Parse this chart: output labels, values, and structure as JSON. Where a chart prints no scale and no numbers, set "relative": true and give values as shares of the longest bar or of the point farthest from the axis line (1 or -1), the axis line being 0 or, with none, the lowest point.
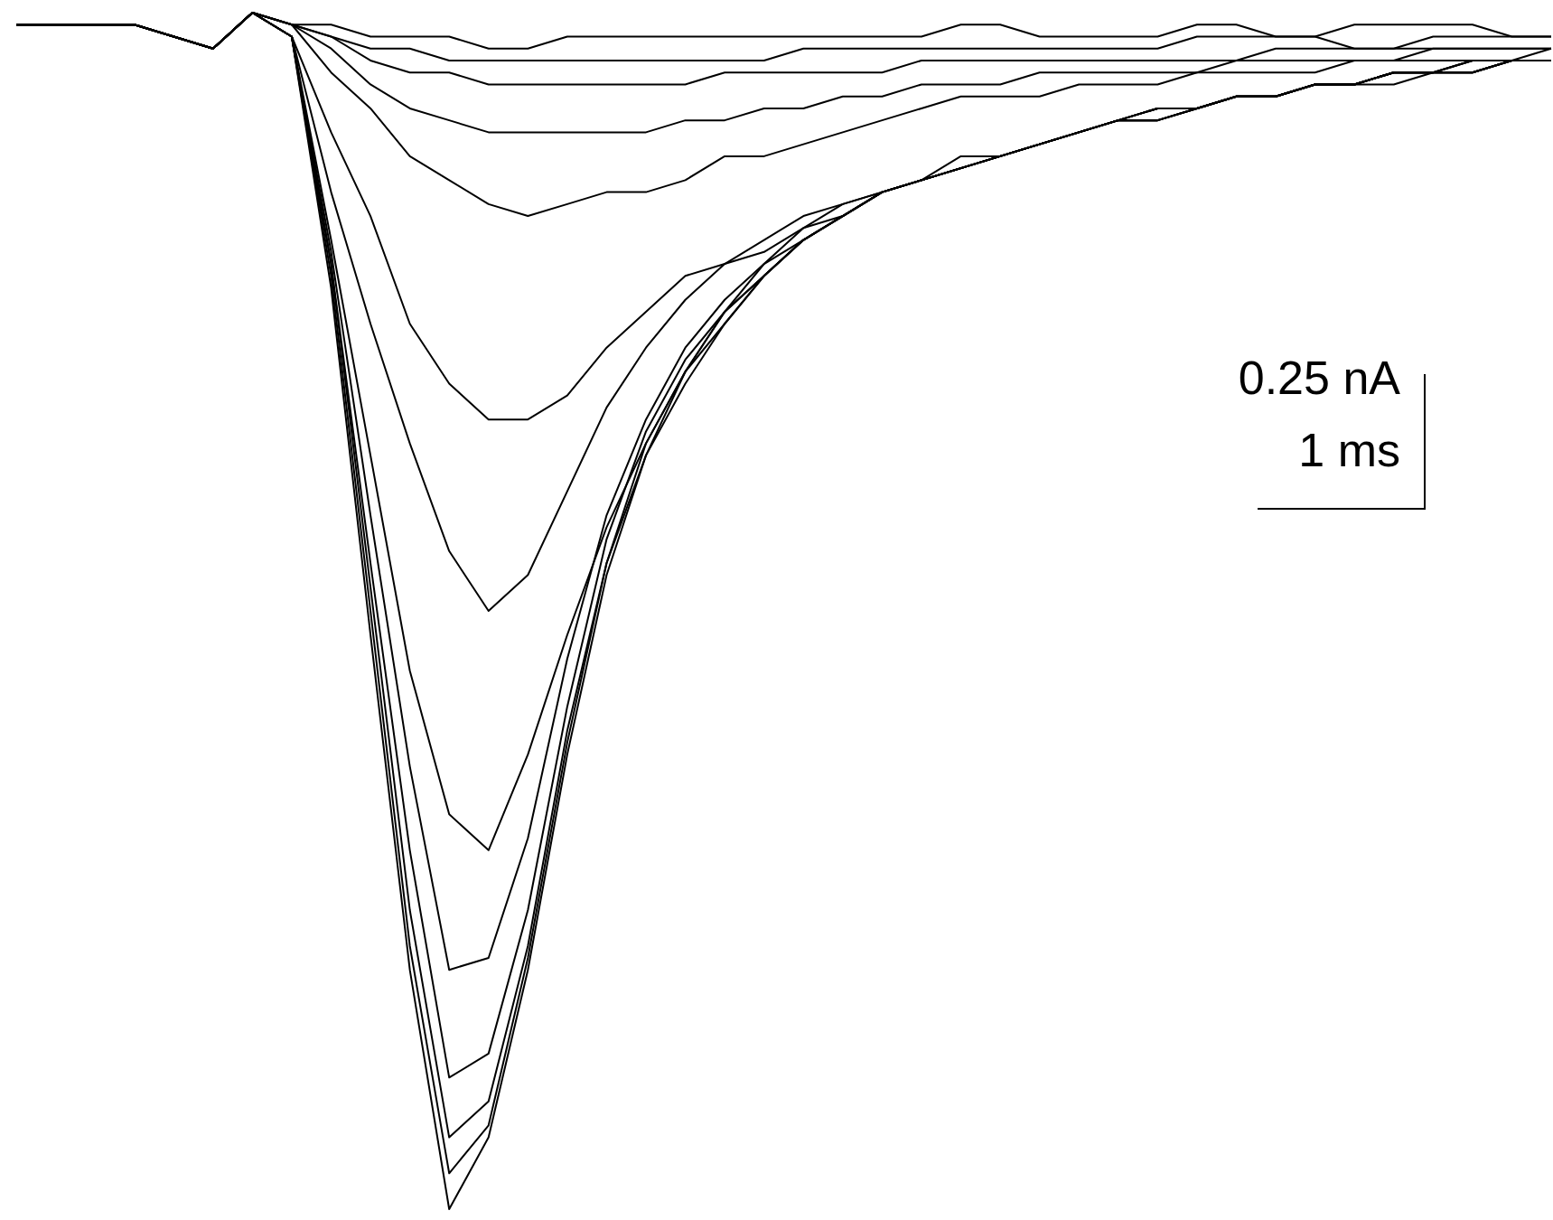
{
  "chart_data": {
    "type": "line",
    "relative": true,
    "marker": "none",
    "annotations": [
      "0.25 nA",
      "1 ms"
    ],
    "categories": [
      null,
      null,
      null,
      null,
      null,
      null,
      null,
      null,
      null,
      null,
      null,
      null,
      null,
      null,
      null,
      null,
      null,
      null,
      null,
      null,
      null,
      null,
      null,
      null,
      null,
      null,
      null,
      null,
      null,
      null,
      null,
      null,
      null,
      null,
      null,
      null,
      null,
      null,
      null,
      null
    ],
    "series": [
      {
        "color": "#000000",
        "values": [
          0.99,
          0.99,
          0.99,
          0.99,
          0.98,
          0.97,
          1.0,
          0.98,
          0.77,
          0.48,
          0.2,
          0.0,
          0.06,
          0.2,
          0.38,
          0.53,
          0.63,
          0.69,
          0.74,
          0.78,
          0.81,
          0.83,
          0.85,
          0.86,
          0.88,
          0.88,
          0.89,
          0.9,
          0.91,
          0.92,
          0.92,
          0.93,
          0.93,
          0.94,
          0.94,
          0.95,
          0.95,
          0.95,
          0.96,
          0.96
        ]
      },
      {
        "color": "#000000",
        "values": [
          0.99,
          0.99,
          0.99,
          0.99,
          0.98,
          0.97,
          1.0,
          0.98,
          0.78,
          0.5,
          0.22,
          0.03,
          0.07,
          0.21,
          0.39,
          0.54,
          0.63,
          0.7,
          0.74,
          0.78,
          0.81,
          0.83,
          0.85,
          0.86,
          0.87,
          0.88,
          0.89,
          0.9,
          0.91,
          0.91,
          0.92,
          0.93,
          0.93,
          0.94,
          0.94,
          0.94,
          0.95,
          0.95,
          0.96,
          0.96
        ]
      },
      {
        "color": "#000000",
        "values": [
          0.99,
          0.99,
          0.99,
          0.99,
          0.98,
          0.97,
          1.0,
          0.98,
          0.79,
          0.52,
          0.25,
          0.06,
          0.09,
          0.22,
          0.4,
          0.54,
          0.64,
          0.7,
          0.75,
          0.78,
          0.81,
          0.83,
          0.85,
          0.86,
          0.87,
          0.88,
          0.89,
          0.9,
          0.91,
          0.92,
          0.92,
          0.93,
          0.93,
          0.94,
          0.94,
          0.95,
          0.95,
          0.96,
          0.96,
          0.96
        ]
      },
      {
        "color": "#000000",
        "values": [
          0.99,
          0.99,
          0.99,
          0.99,
          0.98,
          0.97,
          1.0,
          0.98,
          0.79,
          0.54,
          0.3,
          0.11,
          0.13,
          0.25,
          0.42,
          0.56,
          0.65,
          0.71,
          0.75,
          0.79,
          0.81,
          0.83,
          0.85,
          0.86,
          0.87,
          0.88,
          0.89,
          0.9,
          0.91,
          0.91,
          0.92,
          0.93,
          0.93,
          0.94,
          0.94,
          0.95,
          0.95,
          0.95,
          0.96,
          0.96
        ]
      },
      {
        "color": "#000000",
        "values": [
          0.99,
          0.99,
          0.99,
          0.99,
          0.98,
          0.97,
          1.0,
          0.98,
          0.8,
          0.58,
          0.37,
          0.2,
          0.21,
          0.31,
          0.46,
          0.58,
          0.66,
          0.72,
          0.76,
          0.79,
          0.82,
          0.84,
          0.85,
          0.86,
          0.87,
          0.88,
          0.89,
          0.9,
          0.91,
          0.92,
          0.92,
          0.93,
          0.93,
          0.94,
          0.94,
          0.95,
          0.95,
          0.96,
          0.96,
          0.96
        ]
      },
      {
        "color": "#000000",
        "values": [
          0.99,
          0.99,
          0.99,
          0.99,
          0.98,
          0.97,
          1.0,
          0.98,
          0.81,
          0.63,
          0.45,
          0.33,
          0.3,
          0.38,
          0.48,
          0.57,
          0.64,
          0.7,
          0.75,
          0.78,
          0.81,
          0.83,
          0.85,
          0.86,
          0.87,
          0.88,
          0.89,
          0.9,
          0.91,
          0.91,
          0.92,
          0.93,
          0.93,
          0.94,
          0.94,
          0.95,
          0.95,
          0.95,
          0.96,
          0.96
        ]
      },
      {
        "color": "#000000",
        "values": [
          0.99,
          0.99,
          0.99,
          0.99,
          0.98,
          0.97,
          1.0,
          0.98,
          0.85,
          0.74,
          0.64,
          0.55,
          0.5,
          0.53,
          0.6,
          0.67,
          0.72,
          0.76,
          0.79,
          0.81,
          0.83,
          0.84,
          0.85,
          0.86,
          0.87,
          0.88,
          0.89,
          0.9,
          0.91,
          0.92,
          0.92,
          0.93,
          0.93,
          0.94,
          0.94,
          0.95,
          0.95,
          0.96,
          0.96,
          0.96
        ]
      },
      {
        "color": "#000000",
        "values": [
          0.99,
          0.99,
          0.99,
          0.99,
          0.98,
          0.97,
          1.0,
          0.98,
          0.9,
          0.83,
          0.74,
          0.69,
          0.66,
          0.66,
          0.68,
          0.72,
          0.75,
          0.78,
          0.79,
          0.8,
          0.82,
          0.83,
          0.85,
          0.86,
          0.87,
          0.88,
          0.89,
          0.9,
          0.91,
          0.91,
          0.92,
          0.93,
          0.93,
          0.94,
          0.94,
          0.95,
          0.95,
          0.95,
          0.96,
          0.96
        ]
      },
      {
        "color": "#000000",
        "values": [
          0.99,
          0.99,
          0.99,
          0.99,
          0.98,
          0.97,
          1.0,
          0.99,
          0.95,
          0.92,
          0.88,
          0.86,
          0.84,
          0.83,
          0.84,
          0.85,
          0.85,
          0.86,
          0.88,
          0.88,
          0.89,
          0.9,
          0.91,
          0.92,
          0.93,
          0.93,
          0.93,
          0.94,
          0.94,
          0.94,
          0.95,
          0.95,
          0.95,
          0.95,
          0.96,
          0.96,
          0.96,
          0.96,
          0.96,
          0.97
        ]
      },
      {
        "color": "#000000",
        "values": [
          0.99,
          0.99,
          0.99,
          0.99,
          0.98,
          0.97,
          1.0,
          0.99,
          0.97,
          0.94,
          0.92,
          0.91,
          0.9,
          0.9,
          0.9,
          0.9,
          0.9,
          0.91,
          0.91,
          0.92,
          0.92,
          0.93,
          0.93,
          0.94,
          0.94,
          0.94,
          0.95,
          0.95,
          0.95,
          0.95,
          0.95,
          0.96,
          0.96,
          0.96,
          0.96,
          0.96,
          0.97,
          0.97,
          0.97,
          0.97
        ]
      },
      {
        "color": "#000000",
        "values": [
          0.99,
          0.99,
          0.99,
          0.99,
          0.98,
          0.97,
          1.0,
          0.99,
          0.98,
          0.96,
          0.95,
          0.95,
          0.94,
          0.94,
          0.94,
          0.94,
          0.94,
          0.94,
          0.95,
          0.95,
          0.95,
          0.95,
          0.95,
          0.96,
          0.96,
          0.96,
          0.96,
          0.96,
          0.96,
          0.96,
          0.96,
          0.96,
          0.97,
          0.97,
          0.97,
          0.97,
          0.97,
          0.97,
          0.97,
          0.97
        ]
      },
      {
        "color": "#000000",
        "values": [
          0.99,
          0.99,
          0.99,
          0.99,
          0.98,
          0.97,
          1.0,
          0.99,
          0.98,
          0.97,
          0.97,
          0.96,
          0.96,
          0.96,
          0.96,
          0.96,
          0.96,
          0.96,
          0.96,
          0.96,
          0.97,
          0.97,
          0.97,
          0.97,
          0.97,
          0.97,
          0.97,
          0.97,
          0.97,
          0.97,
          0.98,
          0.98,
          0.98,
          0.98,
          0.97,
          0.97,
          0.98,
          0.98,
          0.98,
          0.98
        ]
      },
      {
        "color": "#000000",
        "values": [
          0.99,
          0.99,
          0.99,
          0.99,
          0.98,
          0.97,
          1.0,
          0.99,
          0.99,
          0.98,
          0.98,
          0.98,
          0.97,
          0.97,
          0.98,
          0.98,
          0.98,
          0.98,
          0.98,
          0.98,
          0.98,
          0.98,
          0.98,
          0.98,
          0.99,
          0.99,
          0.98,
          0.98,
          0.98,
          0.98,
          0.99,
          0.99,
          0.98,
          0.98,
          0.99,
          0.99,
          0.99,
          0.99,
          0.98,
          0.98
        ]
      }
    ]
  }
}
